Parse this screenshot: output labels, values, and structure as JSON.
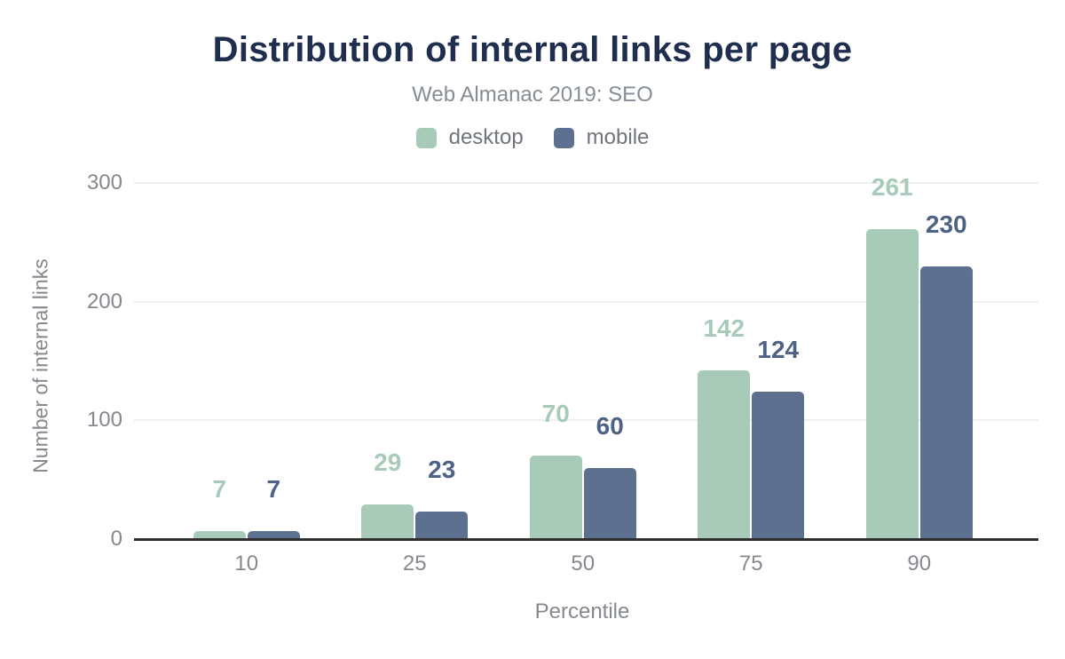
{
  "header": {
    "title": "Distribution of internal links per page",
    "subtitle": "Web Almanac 2019: SEO"
  },
  "legend": {
    "items": [
      {
        "label": "desktop",
        "color": "#a8cbb9"
      },
      {
        "label": "mobile",
        "color": "#5e7090"
      }
    ]
  },
  "chart_data": {
    "type": "bar",
    "title": "Distribution of internal links per page",
    "subtitle": "Web Almanac 2019: SEO",
    "categories": [
      "10",
      "25",
      "50",
      "75",
      "90"
    ],
    "series": [
      {
        "name": "desktop",
        "values": [
          7,
          29,
          70,
          142,
          261
        ],
        "color": "#a8cbb9",
        "label_color": "#a8cbb9"
      },
      {
        "name": "mobile",
        "values": [
          7,
          23,
          60,
          124,
          230
        ],
        "color": "#5e7090",
        "label_color": "#4d6285"
      }
    ],
    "xlabel": "Percentile",
    "ylabel": "Number of internal links",
    "y_ticks": [
      0,
      100,
      200,
      300
    ],
    "ylim": [
      0,
      300
    ],
    "grid": true,
    "legend_position": "top",
    "data_labels": true
  },
  "colors": {
    "title": "#1f2d4e",
    "subtitle_text": "#878d94",
    "legend_text": "#70757c",
    "axis_text": "#85898f",
    "gridline": "#efefef",
    "axis_line": "#2e2e2e",
    "background": "#ffffff"
  }
}
